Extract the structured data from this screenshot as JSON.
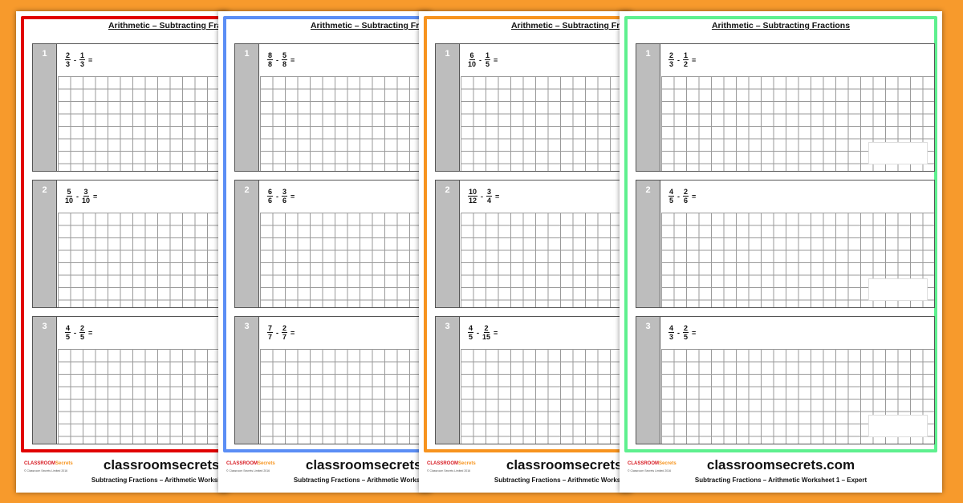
{
  "worksheet": {
    "title": "Arithmetic – Subtracting Fractions",
    "website": "classroomsecrets.com",
    "footer": "Subtracting Fractions – Arithmetic Worksheet 1 – Expert",
    "logo_main": "CLASSROOM",
    "logo_sub": "Secrets",
    "copyright": "© Classroom Secrets Limited 2016"
  },
  "sheets": [
    {
      "frame_color": "#e10000",
      "questions": [
        {
          "number": "1",
          "a_num": "2",
          "a_den": "3",
          "b_num": "1",
          "b_den": "3"
        },
        {
          "number": "2",
          "a_num": "5",
          "a_den": "10",
          "b_num": "3",
          "b_den": "10"
        },
        {
          "number": "3",
          "a_num": "4",
          "a_den": "5",
          "b_num": "2",
          "b_den": "5"
        }
      ]
    },
    {
      "frame_color": "#5b8ef5",
      "questions": [
        {
          "number": "1",
          "a_num": "8",
          "a_den": "8",
          "b_num": "5",
          "b_den": "8"
        },
        {
          "number": "2",
          "a_num": "6",
          "a_den": "6",
          "b_num": "3",
          "b_den": "6"
        },
        {
          "number": "3",
          "a_num": "7",
          "a_den": "7",
          "b_num": "2",
          "b_den": "7"
        }
      ]
    },
    {
      "frame_color": "#f7931e",
      "questions": [
        {
          "number": "1",
          "a_num": "6",
          "a_den": "10",
          "b_num": "1",
          "b_den": "5"
        },
        {
          "number": "2",
          "a_num": "10",
          "a_den": "12",
          "b_num": "3",
          "b_den": "4"
        },
        {
          "number": "3",
          "a_num": "4",
          "a_den": "5",
          "b_num": "2",
          "b_den": "15"
        }
      ]
    },
    {
      "frame_color": "#5ef08f",
      "questions": [
        {
          "number": "1",
          "a_num": "2",
          "a_den": "3",
          "b_num": "1",
          "b_den": "2"
        },
        {
          "number": "2",
          "a_num": "4",
          "a_den": "5",
          "b_num": "2",
          "b_den": "6"
        },
        {
          "number": "3",
          "a_num": "4",
          "a_den": "3",
          "b_num": "2",
          "b_den": "5"
        }
      ]
    }
  ],
  "labels": {
    "minus": "-",
    "equals": "="
  }
}
